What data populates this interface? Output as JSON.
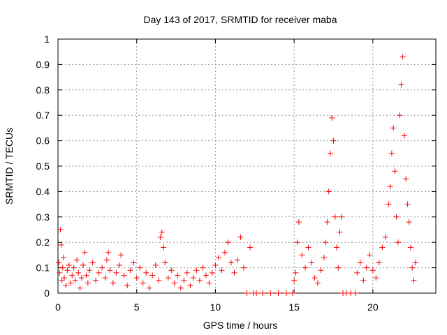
{
  "chart_data": {
    "type": "scatter",
    "title": "Day 143 of 2017, SRMTID for receiver maba",
    "xlabel": "GPS time / hours",
    "ylabel": "SRMTID / TECUs",
    "xlim": [
      0,
      24
    ],
    "ylim": [
      0,
      1
    ],
    "xticks": [
      0,
      5,
      10,
      15,
      20
    ],
    "xtick_labels": [
      "0",
      "5",
      "10",
      "15",
      "20"
    ],
    "yticks": [
      0,
      0.1,
      0.2,
      0.3,
      0.4,
      0.5,
      0.6,
      0.7,
      0.8,
      0.9,
      1
    ],
    "ytick_labels": [
      "0",
      "0.1",
      "0.2",
      "0.3",
      "0.4",
      "0.5",
      "0.6",
      "0.7",
      "0.8",
      "0.9",
      "1"
    ],
    "grid": true,
    "marker": "+",
    "color": "#ff0000",
    "series": [
      {
        "name": "SRMTID",
        "points": [
          [
            0.05,
            0.12
          ],
          [
            0.1,
            0.08
          ],
          [
            0.15,
            0.25
          ],
          [
            0.2,
            0.19
          ],
          [
            0.25,
            0.05
          ],
          [
            0.3,
            0.1
          ],
          [
            0.35,
            0.14
          ],
          [
            0.4,
            0.06
          ],
          [
            0.5,
            0.03
          ],
          [
            0.6,
            0.09
          ],
          [
            0.7,
            0.11
          ],
          [
            0.8,
            0.04
          ],
          [
            0.9,
            0.07
          ],
          [
            1.0,
            0.1
          ],
          [
            1.1,
            0.05
          ],
          [
            1.2,
            0.13
          ],
          [
            1.3,
            0.08
          ],
          [
            1.4,
            0.02
          ],
          [
            1.5,
            0.06
          ],
          [
            1.6,
            0.11
          ],
          [
            1.7,
            0.16
          ],
          [
            1.8,
            0.07
          ],
          [
            1.9,
            0.04
          ],
          [
            2.0,
            0.09
          ],
          [
            2.2,
            0.12
          ],
          [
            2.4,
            0.05
          ],
          [
            2.6,
            0.08
          ],
          [
            2.8,
            0.1
          ],
          [
            3.0,
            0.06
          ],
          [
            3.1,
            0.13
          ],
          [
            3.2,
            0.16
          ],
          [
            3.3,
            0.09
          ],
          [
            3.5,
            0.04
          ],
          [
            3.7,
            0.08
          ],
          [
            3.9,
            0.11
          ],
          [
            4.0,
            0.15
          ],
          [
            4.2,
            0.07
          ],
          [
            4.4,
            0.03
          ],
          [
            4.6,
            0.09
          ],
          [
            4.8,
            0.12
          ],
          [
            5.0,
            0.06
          ],
          [
            5.2,
            0.1
          ],
          [
            5.4,
            0.04
          ],
          [
            5.6,
            0.08
          ],
          [
            5.8,
            0.02
          ],
          [
            6.0,
            0.07
          ],
          [
            6.2,
            0.11
          ],
          [
            6.4,
            0.05
          ],
          [
            6.5,
            0.22
          ],
          [
            6.6,
            0.24
          ],
          [
            6.7,
            0.18
          ],
          [
            6.8,
            0.12
          ],
          [
            7.0,
            0.06
          ],
          [
            7.2,
            0.09
          ],
          [
            7.4,
            0.04
          ],
          [
            7.6,
            0.07
          ],
          [
            7.8,
            0.02
          ],
          [
            8.0,
            0.05
          ],
          [
            8.2,
            0.08
          ],
          [
            8.4,
            0.03
          ],
          [
            8.6,
            0.06
          ],
          [
            8.8,
            0.09
          ],
          [
            9.0,
            0.05
          ],
          [
            9.2,
            0.1
          ],
          [
            9.4,
            0.07
          ],
          [
            9.6,
            0.04
          ],
          [
            9.8,
            0.08
          ],
          [
            10.0,
            0.11
          ],
          [
            10.2,
            0.14
          ],
          [
            10.4,
            0.09
          ],
          [
            10.6,
            0.16
          ],
          [
            10.8,
            0.2
          ],
          [
            11.0,
            0.12
          ],
          [
            11.2,
            0.08
          ],
          [
            11.4,
            0.13
          ],
          [
            11.6,
            0.22
          ],
          [
            11.8,
            0.1
          ],
          [
            12.0,
            0.0
          ],
          [
            12.2,
            0.18
          ],
          [
            12.4,
            0.0
          ],
          [
            12.6,
            0.0
          ],
          [
            13.0,
            0.0
          ],
          [
            13.5,
            0.0
          ],
          [
            14.0,
            0.0
          ],
          [
            14.5,
            0.0
          ],
          [
            14.9,
            0.0
          ],
          [
            15.0,
            0.05
          ],
          [
            15.1,
            0.08
          ],
          [
            15.2,
            0.2
          ],
          [
            15.3,
            0.28
          ],
          [
            15.5,
            0.15
          ],
          [
            15.7,
            0.1
          ],
          [
            15.9,
            0.18
          ],
          [
            16.1,
            0.12
          ],
          [
            16.3,
            0.06
          ],
          [
            16.5,
            0.04
          ],
          [
            16.7,
            0.09
          ],
          [
            16.9,
            0.14
          ],
          [
            17.0,
            0.2
          ],
          [
            17.1,
            0.28
          ],
          [
            17.2,
            0.4
          ],
          [
            17.3,
            0.55
          ],
          [
            17.4,
            0.69
          ],
          [
            17.5,
            0.6
          ],
          [
            17.6,
            0.3
          ],
          [
            17.7,
            0.18
          ],
          [
            17.8,
            0.1
          ],
          [
            17.9,
            0.24
          ],
          [
            18.0,
            0.3
          ],
          [
            18.1,
            0.0
          ],
          [
            18.3,
            0.0
          ],
          [
            18.6,
            0.0
          ],
          [
            18.9,
            0.0
          ],
          [
            19.0,
            0.08
          ],
          [
            19.2,
            0.12
          ],
          [
            19.4,
            0.05
          ],
          [
            19.6,
            0.1
          ],
          [
            19.8,
            0.15
          ],
          [
            20.0,
            0.09
          ],
          [
            20.2,
            0.06
          ],
          [
            20.4,
            0.12
          ],
          [
            20.6,
            0.18
          ],
          [
            20.8,
            0.22
          ],
          [
            21.0,
            0.35
          ],
          [
            21.1,
            0.42
          ],
          [
            21.2,
            0.55
          ],
          [
            21.3,
            0.65
          ],
          [
            21.4,
            0.48
          ],
          [
            21.5,
            0.3
          ],
          [
            21.6,
            0.2
          ],
          [
            21.7,
            0.7
          ],
          [
            21.8,
            0.82
          ],
          [
            21.9,
            0.93
          ],
          [
            22.0,
            0.62
          ],
          [
            22.1,
            0.45
          ],
          [
            22.2,
            0.35
          ],
          [
            22.3,
            0.28
          ],
          [
            22.4,
            0.18
          ],
          [
            22.5,
            0.1
          ],
          [
            22.6,
            0.05
          ],
          [
            22.7,
            0.12
          ]
        ]
      }
    ]
  }
}
